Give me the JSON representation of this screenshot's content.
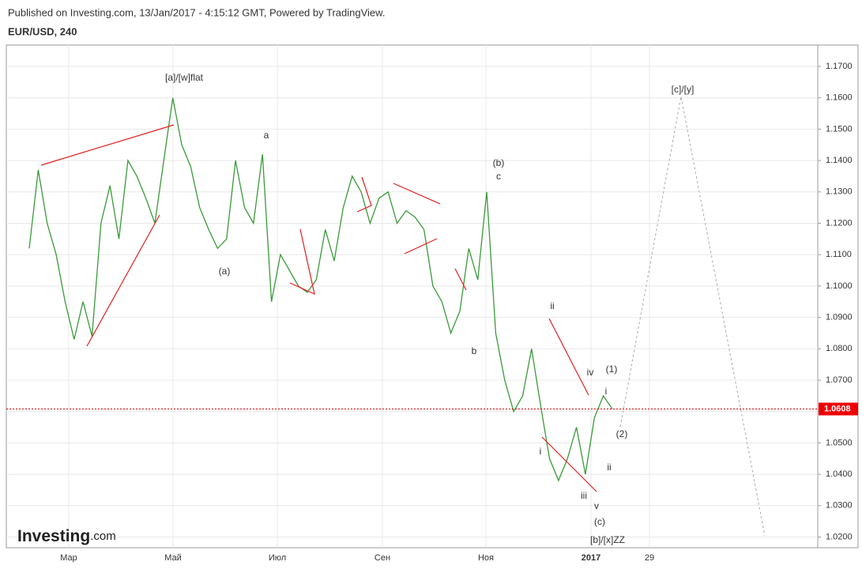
{
  "header": {
    "published": "Published on Investing.com, 13/Jan/2017 - 4:15:12 GMT, Powered by TradingView.",
    "symbol": "EUR/USD, 240"
  },
  "logo": {
    "brand": "Investing",
    "suffix": ".com"
  },
  "chart_data": {
    "type": "line",
    "series": [
      {
        "name": "EUR/USD",
        "color": "#3a9a3a",
        "values": [
          1.112,
          1.137,
          1.12,
          1.11,
          1.095,
          1.083,
          1.095,
          1.084,
          1.12,
          1.132,
          1.115,
          1.14,
          1.135,
          1.128,
          1.12,
          1.14,
          1.16,
          1.145,
          1.138,
          1.125,
          1.118,
          1.112,
          1.115,
          1.14,
          1.125,
          1.12,
          1.142,
          1.095,
          1.11,
          1.105,
          1.1,
          1.098,
          1.102,
          1.118,
          1.108,
          1.125,
          1.135,
          1.13,
          1.12,
          1.128,
          1.13,
          1.12,
          1.124,
          1.122,
          1.118,
          1.1,
          1.095,
          1.085,
          1.092,
          1.112,
          1.102,
          1.13,
          1.085,
          1.07,
          1.06,
          1.065,
          1.08,
          1.062,
          1.045,
          1.038,
          1.045,
          1.055,
          1.04,
          1.058,
          1.065,
          1.0608
        ]
      }
    ],
    "last_price": {
      "value": 1.0608,
      "label": "1.0608"
    },
    "ylim": [
      1.0166,
      1.1768
    ],
    "yticks": [
      {
        "value": 1.02,
        "label": "1.0200"
      },
      {
        "value": 1.03,
        "label": "1.0300"
      },
      {
        "value": 1.04,
        "label": "1.0400"
      },
      {
        "value": 1.05,
        "label": "1.0500"
      },
      {
        "value": 1.06,
        "label": "1.0600"
      },
      {
        "value": 1.07,
        "label": "1.0700"
      },
      {
        "value": 1.08,
        "label": "1.0800"
      },
      {
        "value": 1.09,
        "label": "1.0900"
      },
      {
        "value": 1.1,
        "label": "1.1000"
      },
      {
        "value": 1.11,
        "label": "1.1100"
      },
      {
        "value": 1.12,
        "label": "1.1200"
      },
      {
        "value": 1.13,
        "label": "1.1300"
      },
      {
        "value": 1.14,
        "label": "1.1400"
      },
      {
        "value": 1.15,
        "label": "1.1500"
      },
      {
        "value": 1.16,
        "label": "1.1600"
      },
      {
        "value": 1.17,
        "label": "1.1700"
      }
    ],
    "xticks": [
      "Мар",
      "Май",
      "Июл",
      "Сен",
      "Ноя",
      "2017",
      "29"
    ],
    "annotations": [
      "[a]/[w]flat",
      "(a)",
      "a",
      "(b)",
      "c",
      "b",
      "ii",
      "i",
      "iv",
      "iii",
      "v",
      "(c)",
      "[b]/[x]ZZ",
      "(1)",
      "i",
      "(2)",
      "ii",
      "[c]/[y]"
    ],
    "grid": true
  }
}
